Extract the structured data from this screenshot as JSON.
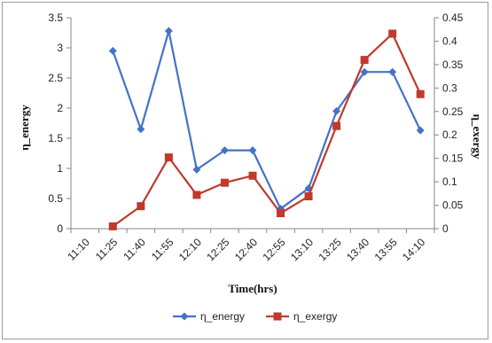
{
  "chart_data": {
    "type": "line",
    "title": "",
    "xlabel": "Time(hrs)",
    "ylabel_left": "η_energy",
    "ylabel_right": "η_exergy",
    "categories": [
      "11:10",
      "11:25",
      "11:40",
      "11:55",
      "12:10",
      "12:25",
      "12:40",
      "12:55",
      "13:10",
      "13:25",
      "13:40",
      "13:55",
      "14:10"
    ],
    "y_left": {
      "min": 0,
      "max": 3.5,
      "ticks": [
        "0",
        "0.5",
        "1",
        "1.5",
        "2",
        "2.5",
        "3",
        "3.5"
      ]
    },
    "y_right": {
      "min": 0,
      "max": 0.45,
      "ticks": [
        "0",
        "0.05",
        "0.1",
        "0.15",
        "0.2",
        "0.25",
        "0.3",
        "0.35",
        "0.4",
        "0.45"
      ]
    },
    "grid": false,
    "legend_position": "bottom",
    "series": [
      {
        "name": "η_energy",
        "axis": "left",
        "color": "#4472c4",
        "marker": "diamond",
        "values": [
          null,
          2.95,
          1.65,
          3.28,
          0.98,
          1.3,
          1.3,
          0.33,
          0.67,
          1.95,
          2.6,
          2.6,
          1.63
        ]
      },
      {
        "name": "η_exergy",
        "axis": "right",
        "color": "#c0392b",
        "marker": "square",
        "values": [
          null,
          0.005,
          0.048,
          0.152,
          0.072,
          0.098,
          0.113,
          0.033,
          0.069,
          0.219,
          0.36,
          0.416,
          0.287
        ]
      }
    ]
  }
}
